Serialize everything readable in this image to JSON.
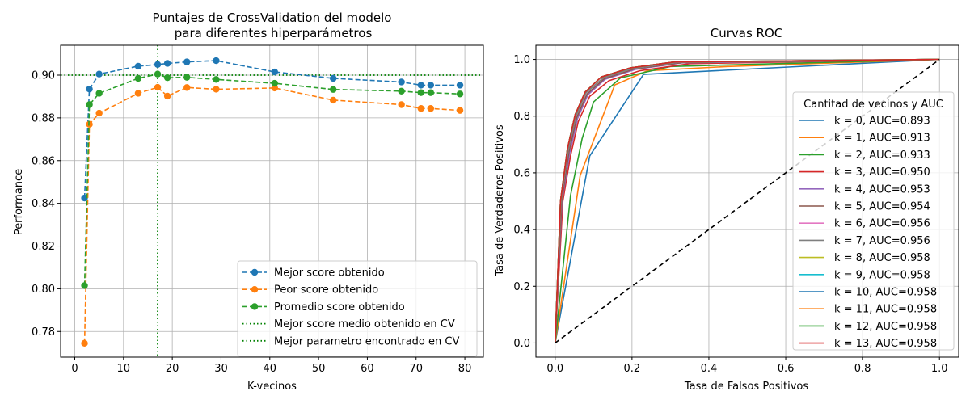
{
  "chart_data": [
    {
      "type": "line",
      "title": "Puntajes de CrossValidation del modelo",
      "subtitle": "para diferentes hiperparámetros",
      "xlabel": "K-vecinos",
      "ylabel": "Performance",
      "xlim": [
        -2.9,
        83.8
      ],
      "ylim": [
        0.768,
        0.914
      ],
      "xticks": [
        0,
        10,
        20,
        30,
        40,
        50,
        60,
        70,
        80
      ],
      "yticks": [
        0.78,
        0.8,
        0.82,
        0.84,
        0.86,
        0.88,
        0.9
      ],
      "ytick_labels": [
        "0.78",
        "0.80",
        "0.82",
        "0.84",
        "0.86",
        "0.88",
        "0.90"
      ],
      "grid": true,
      "legend_position": "lower-right",
      "x": [
        2,
        3,
        5,
        13,
        17,
        19,
        23,
        29,
        41,
        53,
        67,
        71,
        73,
        79
      ],
      "series": [
        {
          "name": "Mejor score obtenido",
          "color": "#1f77b4",
          "values": [
            0.8425,
            0.8935,
            0.9005,
            0.9042,
            0.905,
            0.9055,
            0.9062,
            0.9068,
            0.9015,
            0.8985,
            0.8968,
            0.8953,
            0.8953,
            0.8953
          ]
        },
        {
          "name": "Peor score obtenido",
          "color": "#ff7f0e",
          "values": [
            0.7745,
            0.877,
            0.8822,
            0.8915,
            0.8943,
            0.8902,
            0.8942,
            0.8934,
            0.894,
            0.8883,
            0.8862,
            0.8844,
            0.8844,
            0.8835
          ]
        },
        {
          "name": "Promedio score obtenido",
          "color": "#2ca02c",
          "values": [
            0.8015,
            0.8862,
            0.8915,
            0.8985,
            0.9005,
            0.8988,
            0.899,
            0.898,
            0.8962,
            0.8933,
            0.8925,
            0.8918,
            0.8918,
            0.8912
          ]
        }
      ],
      "reference_lines": [
        {
          "name": "Mejor score medio obtenido en CV",
          "orientation": "horizontal",
          "value": 0.9,
          "color": "#008000"
        },
        {
          "name": "Mejor parametro encontrado en CV",
          "orientation": "vertical",
          "value": 17,
          "color": "#008000"
        }
      ]
    },
    {
      "type": "line",
      "title": "Curvas ROC",
      "xlabel": "Tasa de Falsos Positivos",
      "ylabel": "Tasa de Verdaderos Positivos",
      "xlim": [
        -0.05,
        1.05
      ],
      "ylim": [
        -0.05,
        1.05
      ],
      "xticks": [
        0.0,
        0.2,
        0.4,
        0.6,
        0.8,
        1.0
      ],
      "xtick_labels": [
        "0.0",
        "0.2",
        "0.4",
        "0.6",
        "0.8",
        "1.0"
      ],
      "yticks": [
        0.0,
        0.2,
        0.4,
        0.6,
        0.8,
        1.0
      ],
      "ytick_labels": [
        "0.0",
        "0.2",
        "0.4",
        "0.6",
        "0.8",
        "1.0"
      ],
      "grid": true,
      "legend_title": "Cantitad de vecinos y AUC",
      "legend_position": "right",
      "diagonal": {
        "x": [
          0,
          1
        ],
        "y": [
          0,
          1
        ],
        "color": "#000000",
        "style": "dashed"
      },
      "series": [
        {
          "name": "k = 0, AUC=0.893",
          "color": "#1f77b4",
          "x": [
            0,
            0.09,
            0.23,
            1
          ],
          "y": [
            0,
            0.66,
            0.947,
            1
          ]
        },
        {
          "name": "k = 1, AUC=0.913",
          "color": "#ff7f0e",
          "x": [
            0,
            0.065,
            0.155,
            0.24,
            0.45,
            1
          ],
          "y": [
            0,
            0.59,
            0.91,
            0.96,
            0.975,
            1
          ]
        },
        {
          "name": "k = 2, AUC=0.933",
          "color": "#2ca02c",
          "x": [
            0,
            0.04,
            0.07,
            0.1,
            0.17,
            0.3,
            1
          ],
          "y": [
            0,
            0.52,
            0.72,
            0.85,
            0.935,
            0.975,
            1
          ]
        },
        {
          "name": "k = 3, AUC=0.950",
          "color": "#d62728",
          "x": [
            0,
            0.02,
            0.04,
            0.06,
            0.09,
            0.14,
            0.22,
            0.35,
            1
          ],
          "y": [
            0,
            0.5,
            0.66,
            0.78,
            0.87,
            0.925,
            0.96,
            0.985,
            1
          ]
        },
        {
          "name": "k = 4, AUC=0.953",
          "color": "#9467bd",
          "x": [
            0,
            0.018,
            0.038,
            0.058,
            0.085,
            0.13,
            0.21,
            0.33,
            1
          ],
          "y": [
            0,
            0.5,
            0.67,
            0.79,
            0.875,
            0.93,
            0.965,
            0.988,
            1
          ]
        },
        {
          "name": "k = 5, AUC=0.954",
          "color": "#8c564b",
          "x": [
            0,
            0.017,
            0.036,
            0.056,
            0.083,
            0.128,
            0.205,
            0.33,
            1
          ],
          "y": [
            0,
            0.5,
            0.675,
            0.795,
            0.878,
            0.932,
            0.966,
            0.989,
            1
          ]
        },
        {
          "name": "k = 6, AUC=0.956",
          "color": "#e377c2",
          "x": [
            0,
            0.015,
            0.034,
            0.054,
            0.08,
            0.125,
            0.2,
            0.32,
            1
          ],
          "y": [
            0,
            0.5,
            0.68,
            0.8,
            0.882,
            0.935,
            0.968,
            0.99,
            1
          ]
        },
        {
          "name": "k = 7, AUC=0.956",
          "color": "#7f7f7f",
          "x": [
            0,
            0.015,
            0.034,
            0.054,
            0.08,
            0.125,
            0.2,
            0.32,
            1
          ],
          "y": [
            0,
            0.5,
            0.68,
            0.8,
            0.882,
            0.935,
            0.968,
            0.99,
            1
          ]
        },
        {
          "name": "k = 8, AUC=0.958",
          "color": "#bcbd22",
          "x": [
            0,
            0.014,
            0.032,
            0.052,
            0.078,
            0.12,
            0.195,
            0.31,
            1
          ],
          "y": [
            0,
            0.5,
            0.685,
            0.805,
            0.885,
            0.938,
            0.97,
            0.991,
            1
          ]
        },
        {
          "name": "k = 9, AUC=0.958",
          "color": "#17becf",
          "x": [
            0,
            0.014,
            0.032,
            0.052,
            0.078,
            0.12,
            0.195,
            0.31,
            1
          ],
          "y": [
            0,
            0.5,
            0.685,
            0.805,
            0.885,
            0.938,
            0.97,
            0.991,
            1
          ]
        },
        {
          "name": "k = 10, AUC=0.958",
          "color": "#1f77b4",
          "x": [
            0,
            0.014,
            0.032,
            0.052,
            0.078,
            0.12,
            0.195,
            0.31,
            1
          ],
          "y": [
            0,
            0.5,
            0.685,
            0.805,
            0.885,
            0.938,
            0.97,
            0.991,
            1
          ]
        },
        {
          "name": "k = 11, AUC=0.958",
          "color": "#ff7f0e",
          "x": [
            0,
            0.014,
            0.032,
            0.052,
            0.078,
            0.12,
            0.195,
            0.31,
            1
          ],
          "y": [
            0,
            0.5,
            0.685,
            0.805,
            0.885,
            0.938,
            0.97,
            0.991,
            1
          ]
        },
        {
          "name": "k = 12, AUC=0.958",
          "color": "#2ca02c",
          "x": [
            0,
            0.014,
            0.032,
            0.052,
            0.078,
            0.12,
            0.195,
            0.31,
            1
          ],
          "y": [
            0,
            0.5,
            0.685,
            0.805,
            0.885,
            0.938,
            0.97,
            0.991,
            1
          ]
        },
        {
          "name": "k = 13, AUC=0.958",
          "color": "#d62728",
          "x": [
            0,
            0.014,
            0.032,
            0.052,
            0.078,
            0.12,
            0.195,
            0.31,
            1
          ],
          "y": [
            0,
            0.5,
            0.685,
            0.805,
            0.885,
            0.938,
            0.97,
            0.991,
            1
          ]
        }
      ]
    }
  ]
}
